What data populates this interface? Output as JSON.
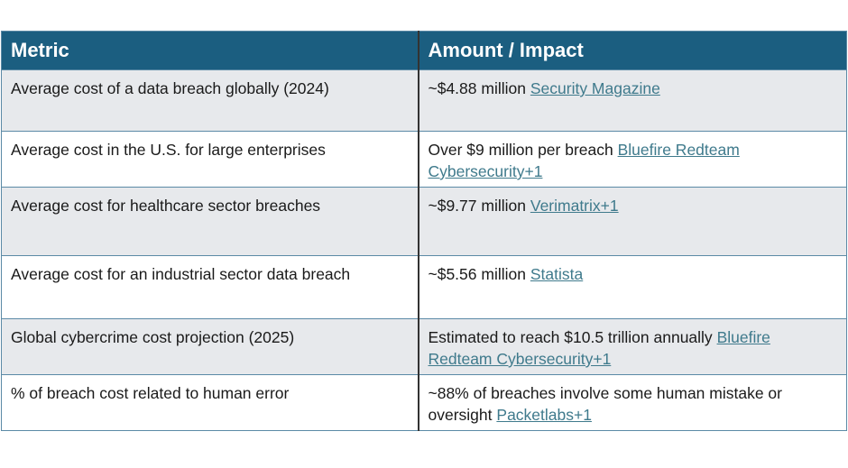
{
  "headers": {
    "metric": "Metric",
    "amount": "Amount / Impact"
  },
  "rows": [
    {
      "metric": "Average cost of a data breach globally (2024)",
      "amount": "~$4.88 million",
      "source": "Security Magazine"
    },
    {
      "metric": "Average cost in the U.S. for large enterprises",
      "amount": "Over $9 million per breach",
      "source": "Bluefire Redteam Cybersecurity+1"
    },
    {
      "metric": "Average cost for healthcare sector breaches",
      "amount": "~$9.77 million",
      "source": "Verimatrix+1"
    },
    {
      "metric": "Average cost for an industrial sector data breach",
      "amount": "~$5.56 million",
      "source": "Statista"
    },
    {
      "metric": "Global cybercrime cost projection (2025)",
      "amount": "Estimated to reach $10.5 trillion annually",
      "source": "Bluefire Redteam Cybersecurity+1"
    },
    {
      "metric": "% of breach cost related to human error",
      "amount": "~88% of breaches involve some human mistake or oversight",
      "source": "Packetlabs+1"
    }
  ],
  "colors": {
    "header": "#1b5e80",
    "row_alt": "#e7e9ec",
    "link": "#3f7a8c"
  }
}
